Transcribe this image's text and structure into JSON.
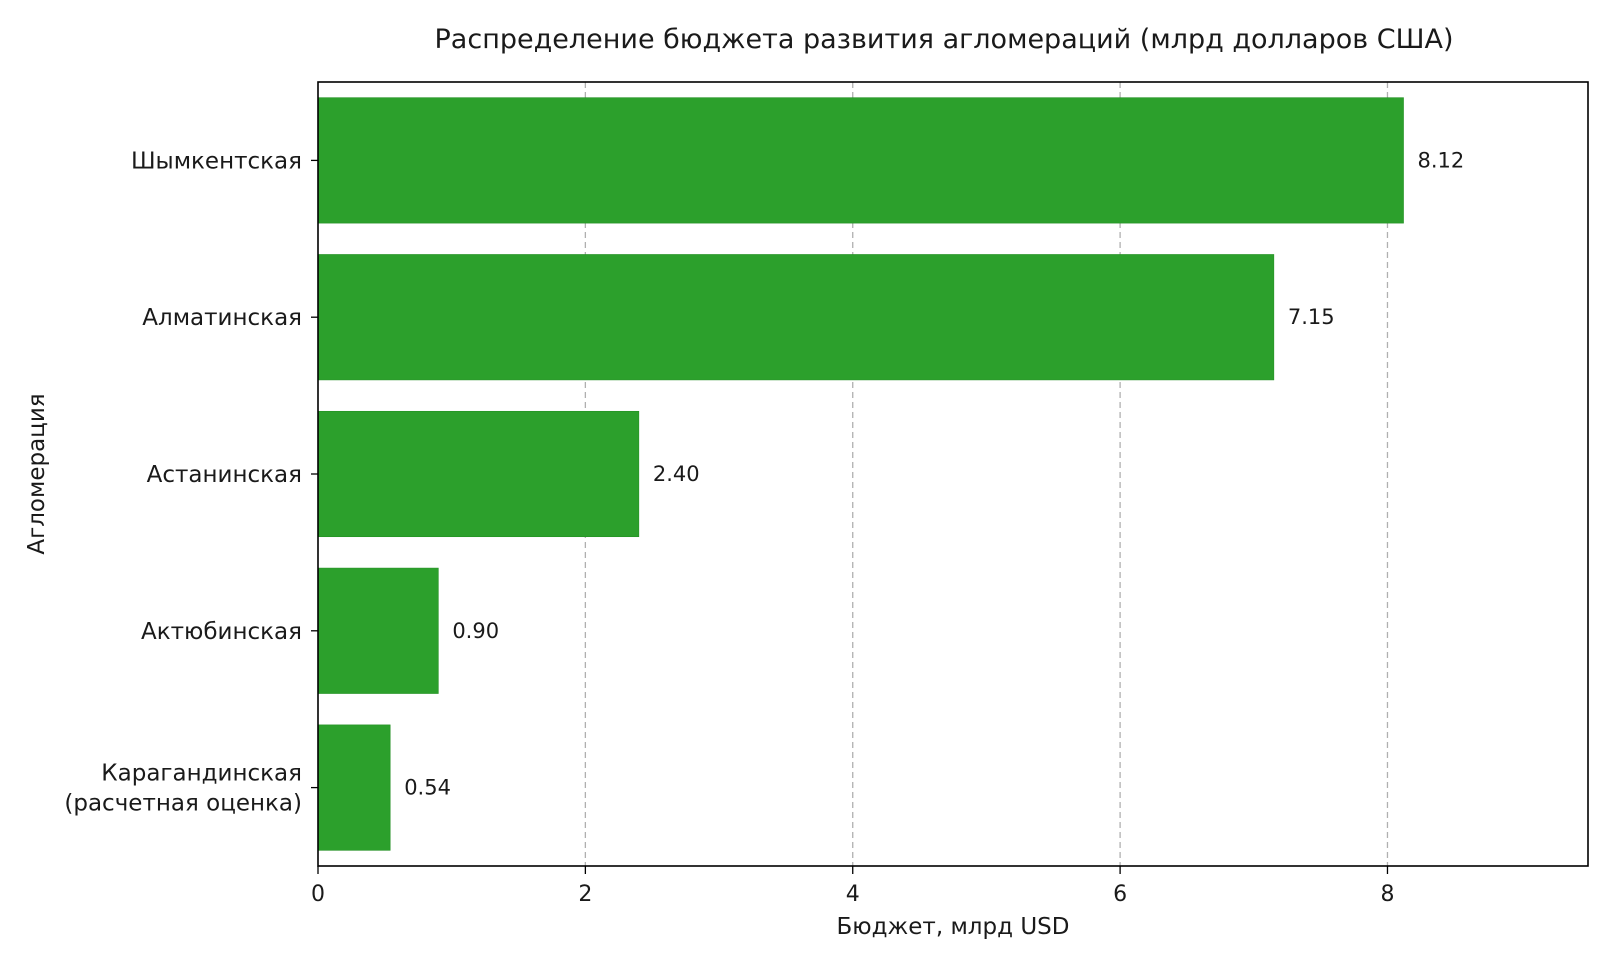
{
  "chart_data": {
    "type": "bar",
    "orientation": "horizontal",
    "title": "Распределение бюджета развития агломераций (млрд долларов США)",
    "xlabel": "Бюджет, млрд USD",
    "ylabel": "Агломерация",
    "xlim": [
      0,
      9.5
    ],
    "xticks": [
      0,
      2,
      4,
      6,
      8
    ],
    "grid": "x, dashed",
    "bar_color": "#2ca02c",
    "categories": [
      [
        "Шымкентская"
      ],
      [
        "Алматинская"
      ],
      [
        "Астанинская"
      ],
      [
        "Актюбинская"
      ],
      [
        "Карагандинская",
        "(расчетная оценка)"
      ]
    ],
    "values": [
      8.12,
      7.15,
      2.4,
      0.9,
      0.54
    ],
    "value_labels": [
      "8.12",
      "7.15",
      "2.40",
      "0.90",
      "0.54"
    ]
  }
}
